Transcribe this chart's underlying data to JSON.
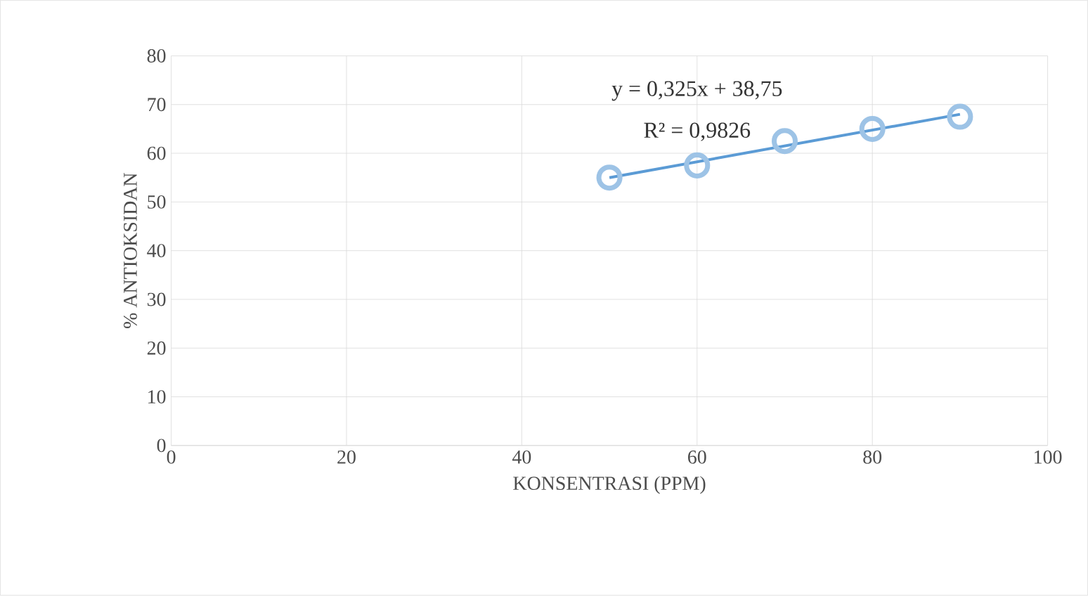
{
  "chart_data": {
    "type": "scatter",
    "xlabel": "KONSENTRASI (PPM)",
    "ylabel": "% ANTIOKSIDAN",
    "xlim": [
      0,
      100
    ],
    "xticks": [
      0,
      20,
      40,
      60,
      80,
      100
    ],
    "ylim": [
      0,
      80
    ],
    "yticks": [
      0,
      10,
      20,
      30,
      40,
      50,
      60,
      70,
      80
    ],
    "grid": true,
    "series": [
      {
        "marker": "circle",
        "color": "#9dc3e6",
        "x": [
          50,
          60,
          70,
          80,
          90
        ],
        "values": [
          55,
          57.5,
          62.5,
          65,
          67.5
        ]
      },
      {
        "type": "line",
        "color": "#5b9bd5",
        "x": [
          50,
          90
        ],
        "values": [
          55,
          68
        ]
      }
    ],
    "annotations": [
      "y = 0,325x + 38,75",
      "R² = 0,9826"
    ]
  }
}
